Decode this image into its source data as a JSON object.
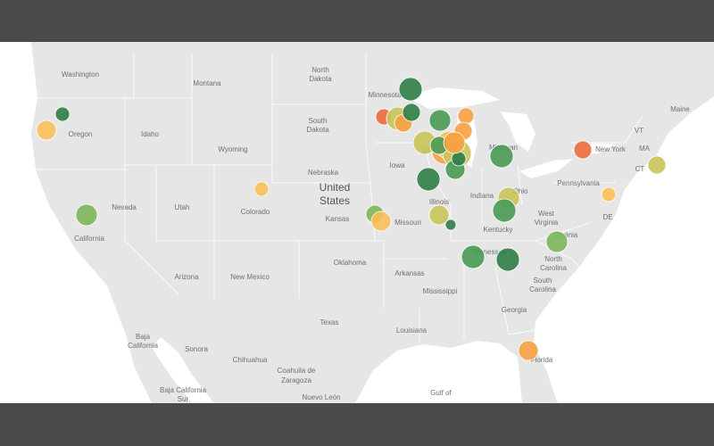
{
  "map": {
    "title": "United States",
    "title_lines": [
      "United",
      "States"
    ],
    "labels": [
      "Washington",
      "Oregon",
      "Idaho",
      "Montana",
      "Wyoming",
      "Nevada",
      "Utah",
      "Colorado",
      "California",
      "Arizona",
      "New Mexico",
      "North",
      "Dakota",
      "South",
      "Dakota",
      "Nebraska",
      "Kansas",
      "Oklahoma",
      "Texas",
      "Minnesota",
      "Iowa",
      "Missouri",
      "Arkansas",
      "Louisiana",
      "Mississippi",
      "Illinois",
      "Indiana",
      "Ohio",
      "Kentucky",
      "Georgia",
      "Florida",
      "South",
      "Carolina",
      "North",
      "Carolina",
      "Virginia",
      "West",
      "Virginia",
      "Pennsylvania",
      "New York",
      "VT",
      "Maine",
      "MA",
      "CT",
      "DE",
      "Michigan",
      "Wi",
      "Baja",
      "California",
      "Sonora",
      "Chihuahua",
      "Coahuila de",
      "Zaragoza",
      "Baja California",
      "Sur",
      "Nuevo León",
      "Gulf of",
      "Tennessee"
    ]
  }
}
